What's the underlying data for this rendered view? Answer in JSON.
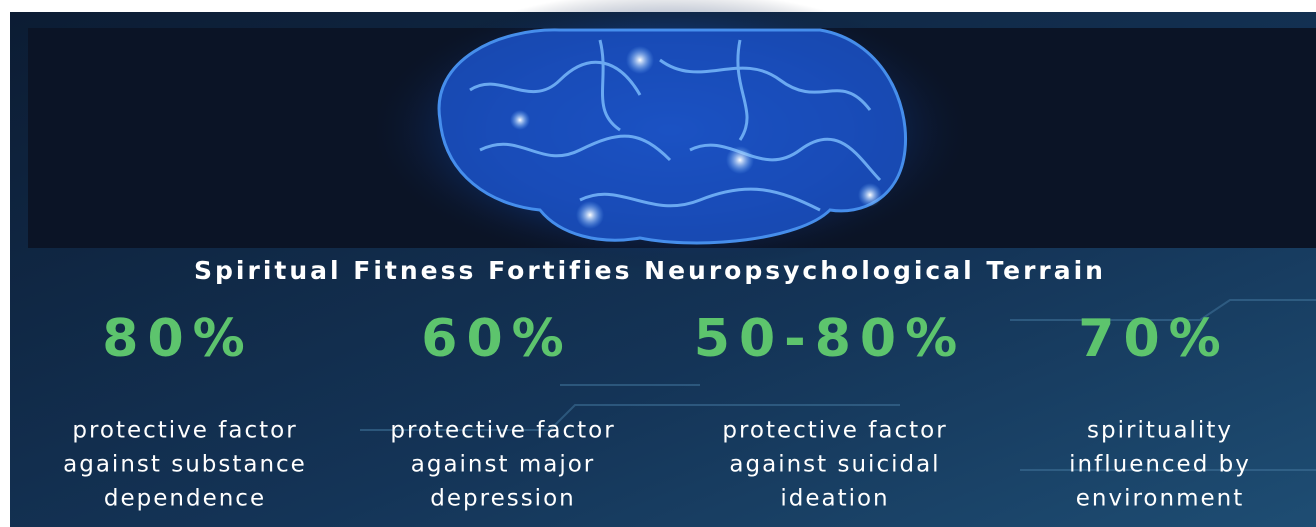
{
  "title": "Spiritual Fitness Fortifies Neuropsychological Terrain",
  "stats": [
    {
      "value": "80%",
      "description": [
        "protective factor",
        "against substance",
        "dependence"
      ]
    },
    {
      "value": "60%",
      "description": [
        "protective factor",
        "against major",
        "depression"
      ]
    },
    {
      "value": "50-80%",
      "description": [
        "protective factor",
        "against suicidal",
        "ideation"
      ]
    },
    {
      "value": "70%",
      "description": [
        "spirituality",
        "influenced by",
        "environment"
      ]
    }
  ]
}
